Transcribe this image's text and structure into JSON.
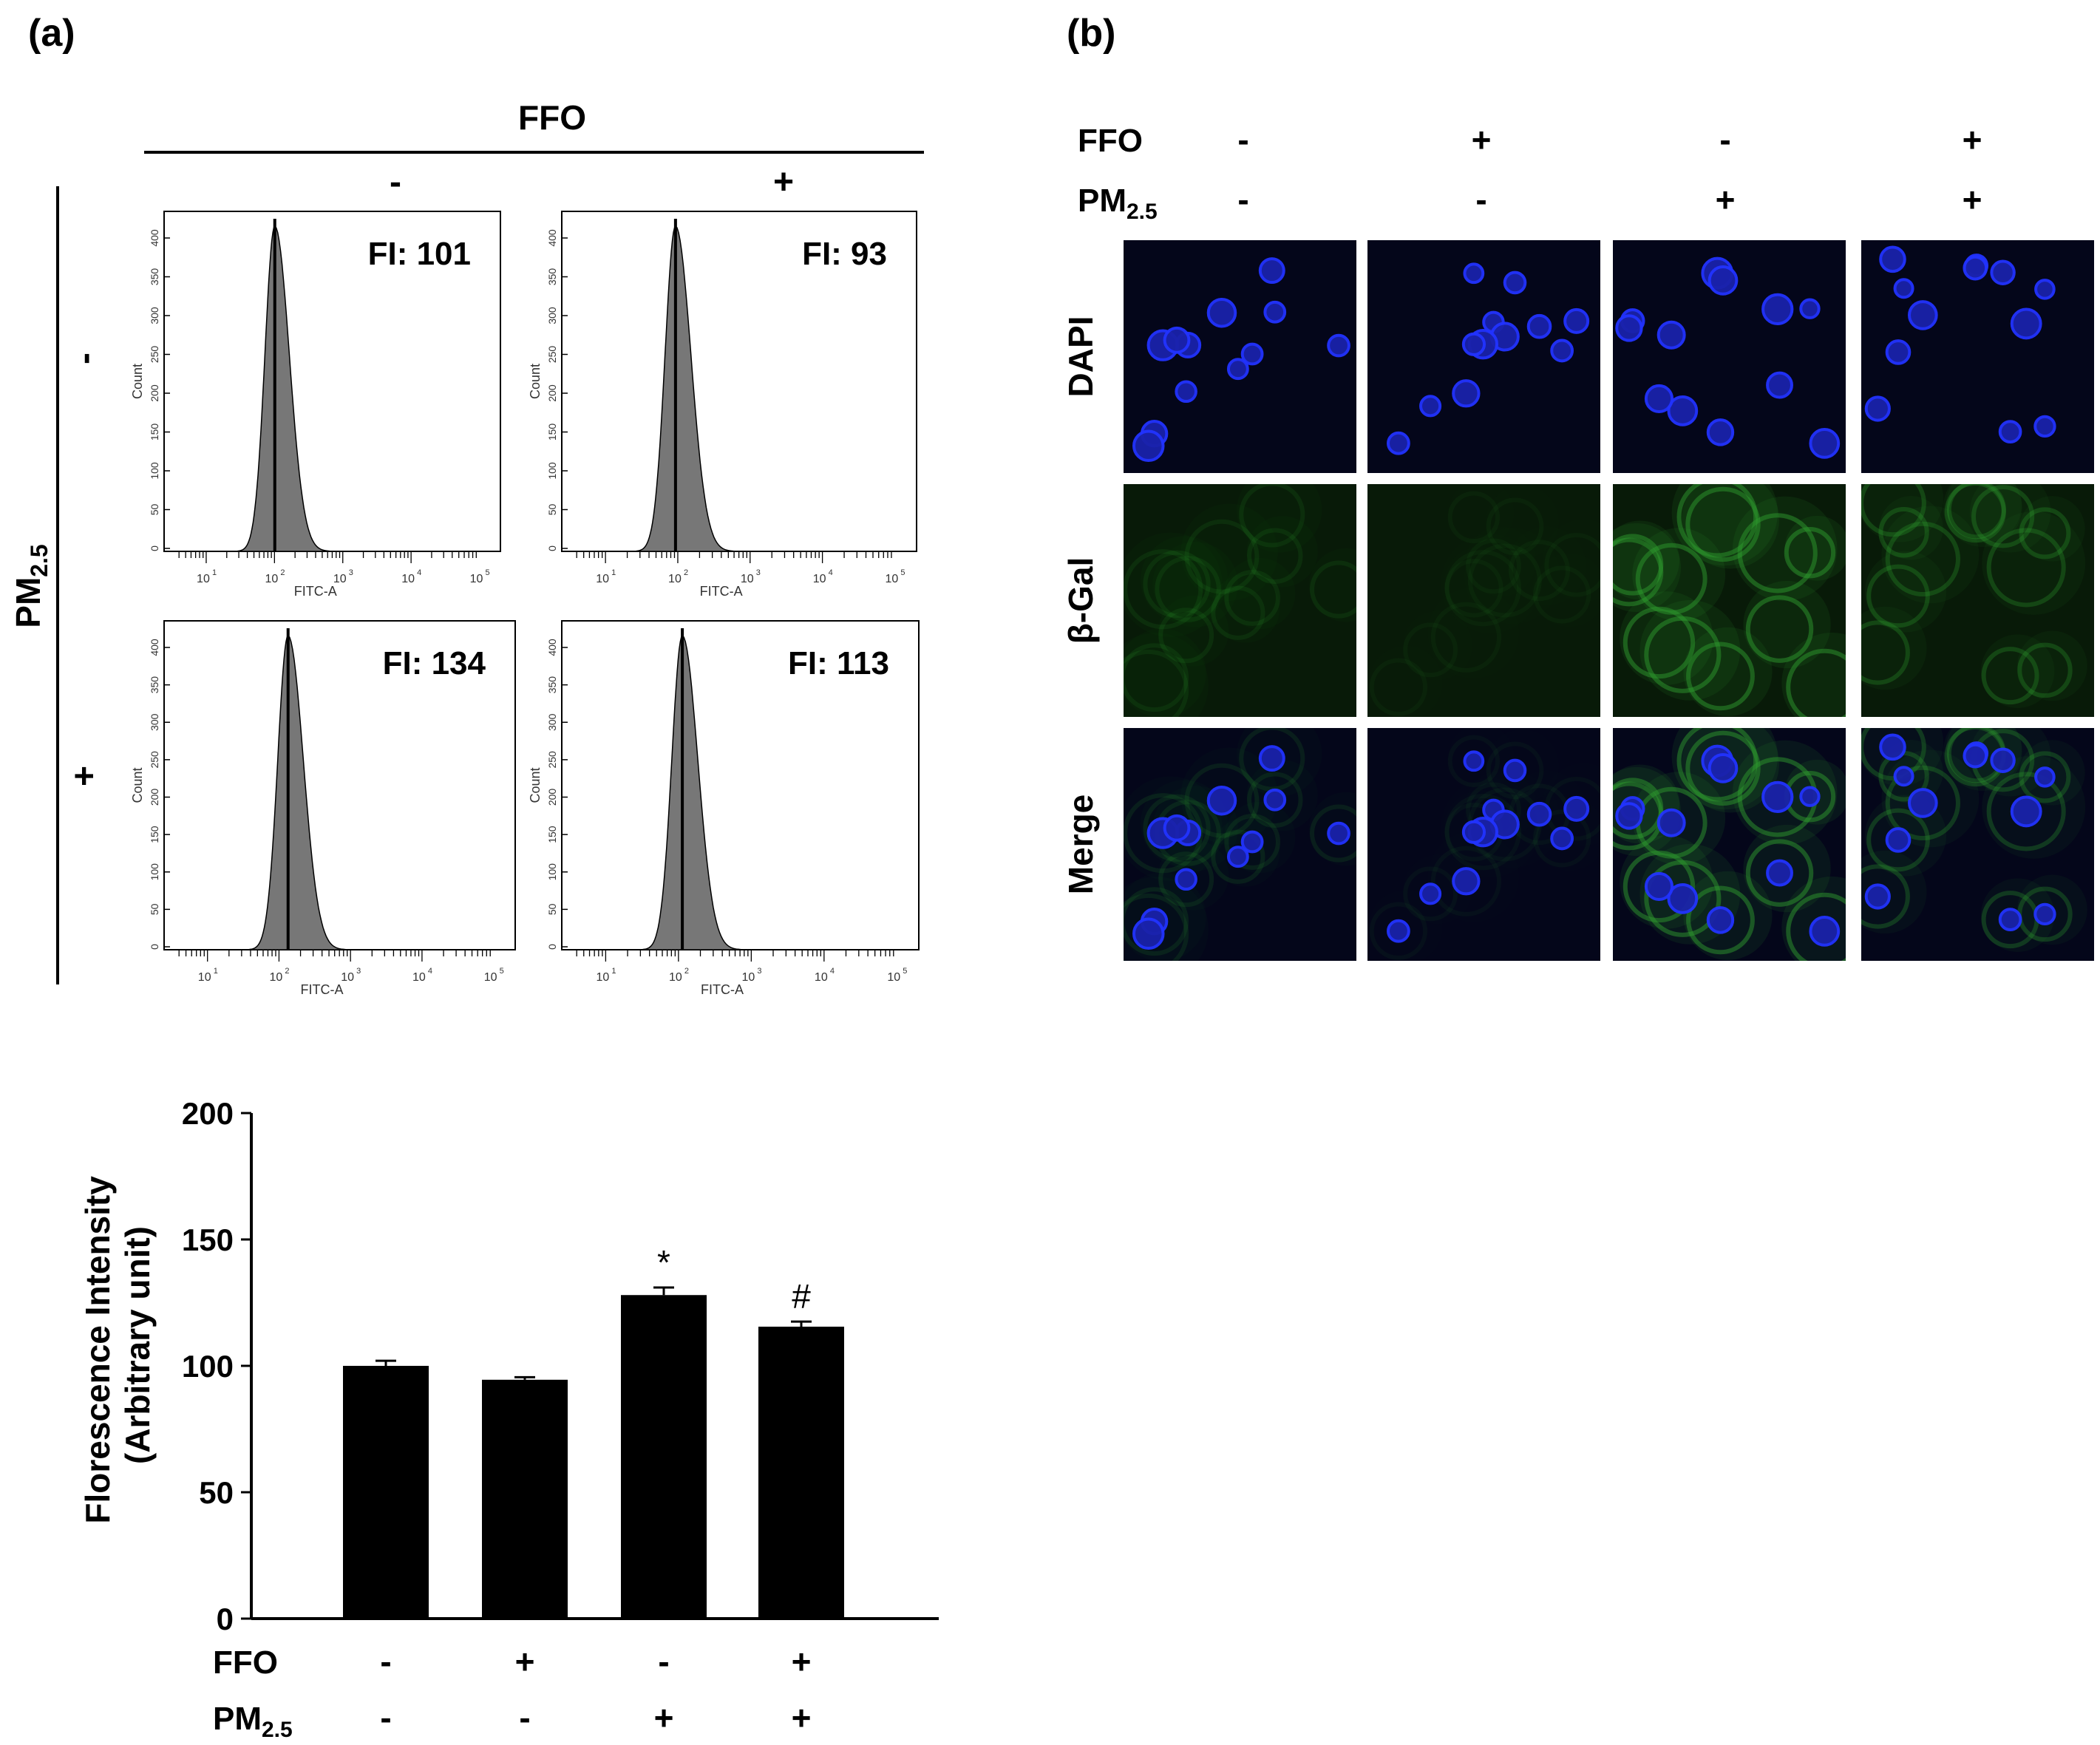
{
  "panel_a": {
    "label": "(a)",
    "ffo_header": "FFO",
    "pm_header_main": "PM",
    "pm_header_sub": "2.5",
    "col_signs": [
      "-",
      "+"
    ],
    "row_signs": [
      "-",
      "+"
    ],
    "histograms": [
      {
        "fi_label": "FI: 101",
        "fi": 101,
        "ylabel": "Count",
        "xlabel": "FITC-A",
        "yticks": [
          "0",
          "50",
          "100",
          "150",
          "200",
          "250",
          "300",
          "350",
          "400"
        ],
        "xticks": [
          "10",
          "10",
          "10",
          "10",
          "10"
        ],
        "xtick_exp": [
          "1",
          "2",
          "3",
          "4",
          "5"
        ]
      },
      {
        "fi_label": "FI: 93",
        "fi": 93,
        "ylabel": "Count",
        "xlabel": "FITC-A",
        "yticks": [
          "0",
          "50",
          "100",
          "150",
          "200",
          "250",
          "300",
          "350",
          "400"
        ],
        "xticks": [
          "10",
          "10",
          "10",
          "10",
          "10"
        ],
        "xtick_exp": [
          "1",
          "2",
          "3",
          "4",
          "5"
        ]
      },
      {
        "fi_label": "FI: 134",
        "fi": 134,
        "ylabel": "Count",
        "xlabel": "FITC-A",
        "yticks": [
          "0",
          "50",
          "100",
          "150",
          "200",
          "250",
          "300",
          "350",
          "400"
        ],
        "xticks": [
          "10",
          "10",
          "10",
          "10",
          "10"
        ],
        "xtick_exp": [
          "1",
          "2",
          "3",
          "4",
          "5"
        ]
      },
      {
        "fi_label": "FI: 113",
        "fi": 113,
        "ylabel": "Count",
        "xlabel": "FITC-A",
        "yticks": [
          "0",
          "50",
          "100",
          "150",
          "200",
          "250",
          "300",
          "350",
          "400"
        ],
        "xticks": [
          "10",
          "10",
          "10",
          "10",
          "10"
        ],
        "xtick_exp": [
          "1",
          "2",
          "3",
          "4",
          "5"
        ]
      }
    ]
  },
  "chart_data": {
    "type": "bar",
    "categories": [
      "1",
      "2",
      "3",
      "4"
    ],
    "values": [
      100,
      94.5,
      128,
      115.5
    ],
    "errors": [
      2,
      1,
      3,
      2
    ],
    "annotations": [
      "",
      "",
      "*",
      "#"
    ],
    "ylabel_line1": "Florescence Intensity",
    "ylabel_line2": "(Arbitrary unit)",
    "ylim": [
      0,
      200
    ],
    "yticks": [
      "0",
      "50",
      "100",
      "150",
      "200"
    ],
    "row1_label": "FFO",
    "row2_label_main": "PM",
    "row2_label_sub": "2.5",
    "row1_signs": [
      "-",
      "+",
      "-",
      "+"
    ],
    "row2_signs": [
      "-",
      "-",
      "+",
      "+"
    ],
    "bar_color": "#000000"
  },
  "panel_b": {
    "label": "(b)",
    "ffo_label": "FFO",
    "pm_label_main": "PM",
    "pm_label_sub": "2.5",
    "ffo_signs": [
      "-",
      "+",
      "-",
      "+"
    ],
    "pm_signs": [
      "-",
      "-",
      "+",
      "+"
    ],
    "row_labels": [
      "DAPI",
      "β-Gal",
      "Merge"
    ],
    "dapi_color": "#2233ff",
    "gal_color": "#2e9a2e"
  }
}
